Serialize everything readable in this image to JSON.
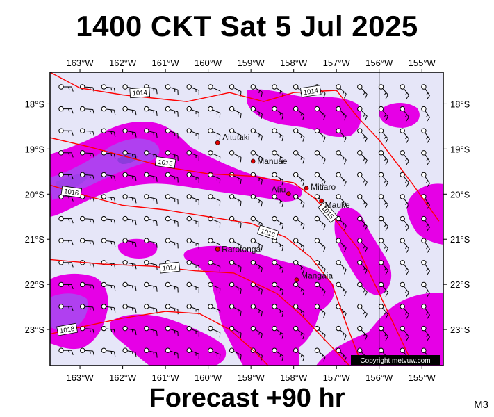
{
  "header": {
    "title": "1400 CKT Sat 5 Jul 2025"
  },
  "footer": {
    "forecast": "Forecast +90 hr",
    "model": "M3"
  },
  "map": {
    "lon_labels": [
      "163°W",
      "162°W",
      "161°W",
      "160°W",
      "159°W",
      "158°W",
      "157°W",
      "156°W",
      "155°W"
    ],
    "lat_labels": [
      "18°S",
      "19°S",
      "20°S",
      "21°S",
      "22°S",
      "23°S"
    ],
    "lon_range": [
      -163.7,
      -154.5
    ],
    "lat_range": [
      -17.3,
      -23.8
    ],
    "isobars": [
      {
        "label": "1014",
        "points": [
          [
            -163.7,
            -17.3
          ],
          [
            -163,
            -17.65
          ],
          [
            -162,
            -17.8
          ],
          [
            -160.5,
            -17.95
          ],
          [
            -159.5,
            -17.75
          ],
          [
            -158.7,
            -17.95
          ],
          [
            -158,
            -17.75
          ],
          [
            -157,
            -17.7
          ],
          [
            -156.5,
            -18.3
          ],
          [
            -156,
            -18.8
          ],
          [
            -155.2,
            -19.8
          ],
          [
            -154.6,
            -20.6
          ]
        ]
      },
      {
        "label": "1015",
        "points": [
          [
            -163.7,
            -18.75
          ],
          [
            -162.8,
            -18.95
          ],
          [
            -162,
            -19.15
          ],
          [
            -161,
            -19.4
          ],
          [
            -160,
            -19.55
          ],
          [
            -159,
            -19.6
          ],
          [
            -158,
            -19.75
          ],
          [
            -157.5,
            -20.1
          ],
          [
            -157,
            -20.6
          ],
          [
            -156.5,
            -21.2
          ],
          [
            -156,
            -22.2
          ],
          [
            -155.6,
            -23
          ],
          [
            -155.2,
            -23.8
          ]
        ]
      },
      {
        "label": "1016",
        "points": [
          [
            -163.7,
            -19.8
          ],
          [
            -163,
            -20.0
          ],
          [
            -162,
            -20.25
          ],
          [
            -161,
            -20.35
          ],
          [
            -160,
            -20.5
          ],
          [
            -159,
            -20.65
          ],
          [
            -158.2,
            -20.95
          ],
          [
            -157.6,
            -21.4
          ],
          [
            -157.1,
            -22.0
          ],
          [
            -156.8,
            -22.8
          ],
          [
            -156.4,
            -23.8
          ]
        ]
      },
      {
        "label": "1017",
        "points": [
          [
            -163.7,
            -21.45
          ],
          [
            -162.5,
            -21.55
          ],
          [
            -161.3,
            -21.6
          ],
          [
            -160.3,
            -21.7
          ],
          [
            -159.4,
            -21.75
          ],
          [
            -158.4,
            -22.2
          ],
          [
            -157.8,
            -22.7
          ],
          [
            -157.2,
            -23.3
          ],
          [
            -156.7,
            -23.8
          ]
        ]
      },
      {
        "label": "1018",
        "points": [
          [
            -163.7,
            -23.1
          ],
          [
            -163,
            -22.95
          ],
          [
            -162,
            -22.75
          ],
          [
            -161,
            -22.6
          ],
          [
            -160.2,
            -22.65
          ],
          [
            -159.5,
            -23.0
          ],
          [
            -158.9,
            -23.5
          ],
          [
            -158.6,
            -23.8
          ]
        ]
      }
    ],
    "places": [
      {
        "name": "Aitutaki",
        "lon": -159.78,
        "lat": -18.86
      },
      {
        "name": "Manuae",
        "lon": -158.95,
        "lat": -19.27
      },
      {
        "name": "Atiu",
        "lon": -158.12,
        "lat": -19.99
      },
      {
        "name": "Mitiaro",
        "lon": -157.7,
        "lat": -19.87
      },
      {
        "name": "Mauke",
        "lon": -157.35,
        "lat": -20.15
      },
      {
        "name": "Rarotonga",
        "lon": -159.78,
        "lat": -21.22
      },
      {
        "name": "Mangaia",
        "lon": -157.93,
        "lat": -21.9
      }
    ],
    "meridian_line_lon": -156.0,
    "copyright": "Copyright metvuw.com",
    "colors": {
      "background": "#e6e6f8",
      "rain_light": "#e600e6",
      "rain_medium": "#b040f0",
      "rain_heavy": "#8c3cdc",
      "isobar": "#ff0000",
      "place_dot": "#e00000"
    }
  }
}
